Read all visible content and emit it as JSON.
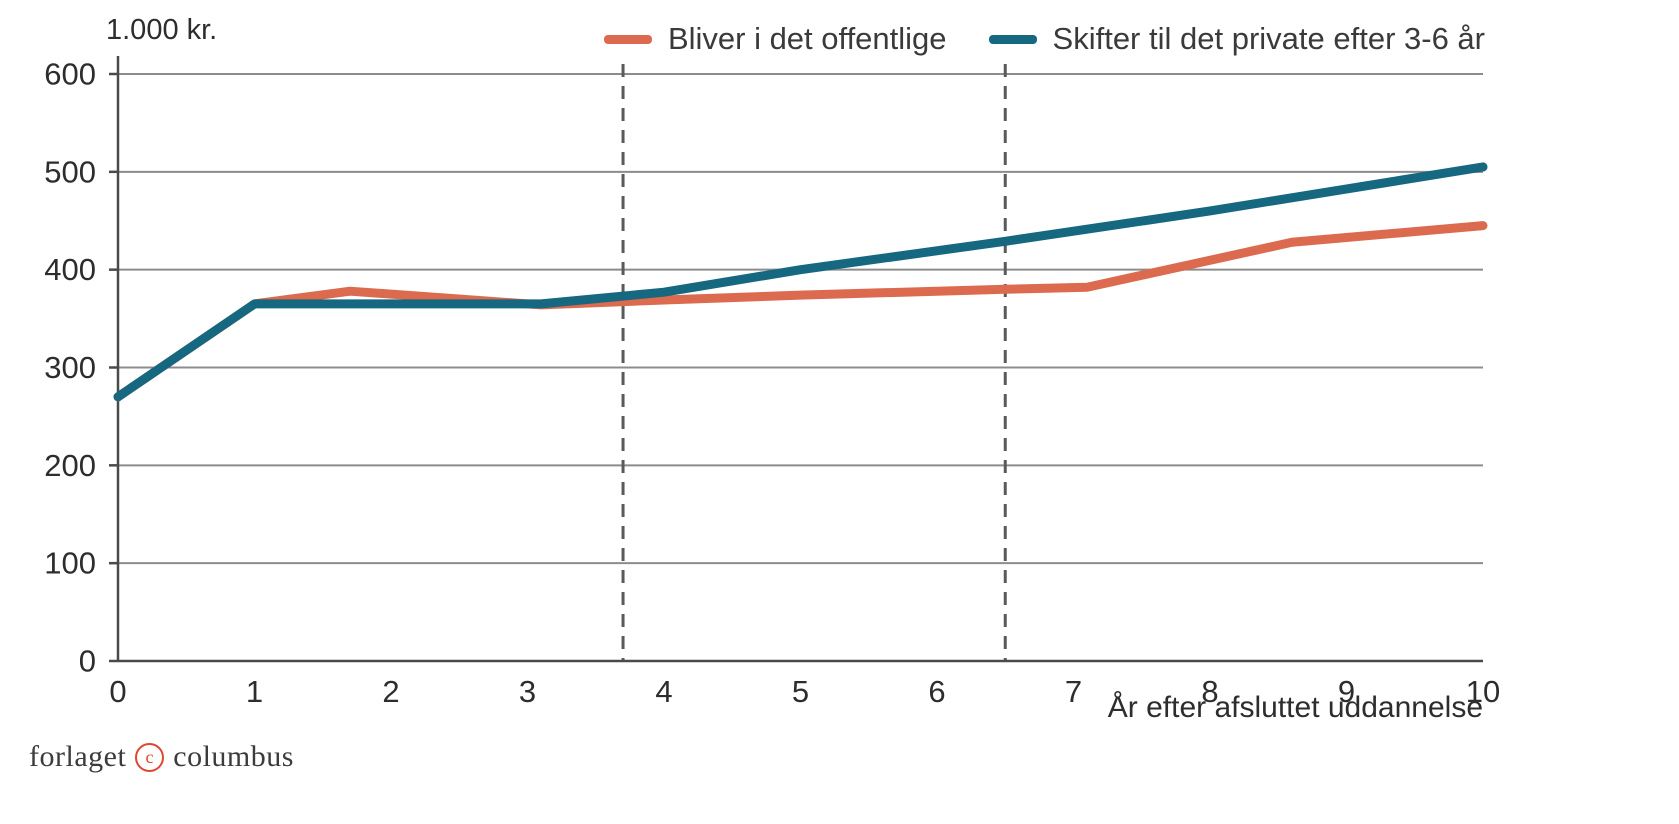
{
  "chart_data": {
    "type": "line",
    "title": "",
    "ylabel": "1.000 kr.",
    "xlabel": "År efter afsluttet uddannelse",
    "x_ticks": [
      0,
      1,
      2,
      3,
      4,
      5,
      6,
      7,
      8,
      9,
      10
    ],
    "y_ticks": [
      0,
      100,
      200,
      300,
      400,
      500,
      600
    ],
    "xlim": [
      0,
      10
    ],
    "ylim": [
      0,
      600
    ],
    "grid": "horizontal",
    "legend_position": "top-right",
    "dashed_vlines_x": [
      3.7,
      6.5
    ],
    "series": [
      {
        "name": "Bliver i det offentlige",
        "color": "#DC6A4E",
        "points": [
          [
            0,
            270
          ],
          [
            1,
            365
          ],
          [
            1.7,
            378
          ],
          [
            3.1,
            364
          ],
          [
            4,
            369
          ],
          [
            5,
            374
          ],
          [
            6,
            378
          ],
          [
            6.5,
            380
          ],
          [
            7.1,
            382
          ],
          [
            8.6,
            428
          ],
          [
            10,
            445
          ]
        ]
      },
      {
        "name": "Skifter til det private efter 3-6 år",
        "color": "#15687F",
        "points": [
          [
            0,
            270
          ],
          [
            1,
            365
          ],
          [
            2,
            365
          ],
          [
            3.1,
            365
          ],
          [
            4,
            377
          ],
          [
            5,
            400
          ],
          [
            6.5,
            429
          ],
          [
            8,
            460
          ],
          [
            10,
            505
          ]
        ]
      }
    ],
    "style": {
      "grid_color": "#8C8C8C",
      "axis_color": "#4A4A4A",
      "dashed_line_color": "#5A5A5A",
      "line_width": 9
    }
  },
  "footer": {
    "publisher_prefix": "forlaget",
    "copyright_symbol": "c",
    "publisher_suffix": "columbus"
  }
}
